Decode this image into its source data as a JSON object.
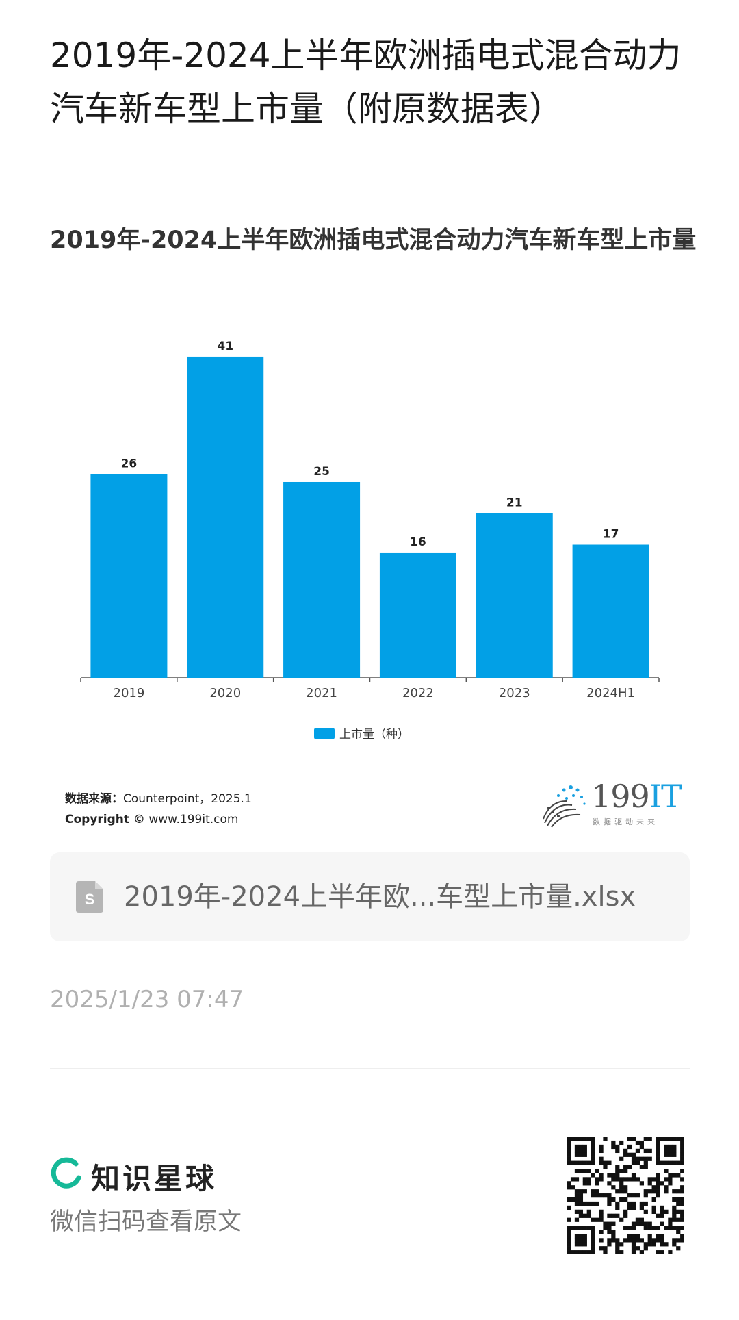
{
  "page": {
    "title": "2019年-2024上半年欧洲插电式混合动力汽车新车型上市量（附原数据表）"
  },
  "chart_data": {
    "type": "bar",
    "title": "2019年-2024上半年欧洲插电式混合动力汽车新车型上市量",
    "categories": [
      "2019",
      "2020",
      "2021",
      "2022",
      "2023",
      "2024H1"
    ],
    "series": [
      {
        "name": "上市量（种）",
        "values": [
          26,
          41,
          25,
          16,
          21,
          17
        ],
        "color": "#02a0e6"
      }
    ],
    "ylim": [
      0,
      45
    ],
    "grid": false,
    "legend": "bottom-center",
    "data_labels": true
  },
  "source": {
    "label": "数据来源：",
    "text": "Counterpoint，2025.1",
    "copyright_label": "Copyright ©",
    "copyright_text": "www.199it.com"
  },
  "logo": {
    "number": "199",
    "suffix": "IT",
    "tagline": "数据驱动未来"
  },
  "file": {
    "icon": "spreadsheet-file-icon",
    "name": "2019年-2024上半年欧...车型上市量.xlsx"
  },
  "timestamp": "2025/1/23 07:47",
  "brand": {
    "name": "知识星球",
    "scan_text": "微信扫码查看原文",
    "accent": "#16b998"
  }
}
